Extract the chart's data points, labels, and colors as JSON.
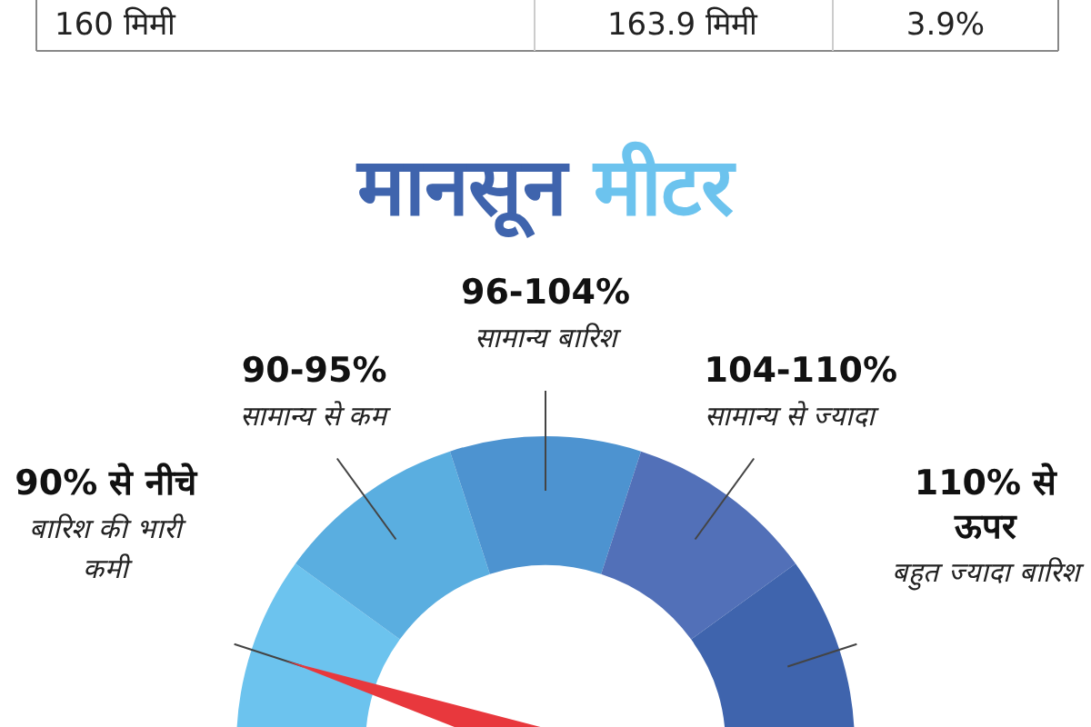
{
  "chart_data": {
    "type": "donut",
    "title": "मानसून मीटर",
    "categories": [
      "**90% से नीचे** बारिश की भारी कमी",
      "**90-95%** सामान्य से कम",
      "**96-104%** सामान्य बारिश",
      "**104-110%** सामान्य से ज्यादा",
      "**110% से ऊपर** बहुत ज्यादा बारिश"
    ],
    "values": [
      20,
      20,
      20,
      20,
      20
    ],
    "colors": [
      "#6cc3ee",
      "#5aaee0",
      "#4d93d0",
      "#5270b8",
      "#3f64ad"
    ],
    "needle": "**90% से नीचे** बारिश की भारी कमी",
    "annotations": [
      "160 मिमी",
      "163.9 मिमी",
      "3.9%"
    ]
  }
}
